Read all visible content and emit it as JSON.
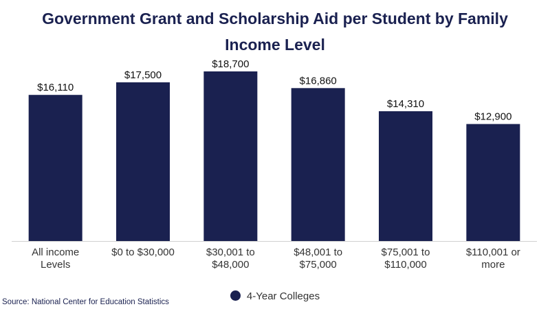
{
  "chart_data": {
    "type": "bar",
    "title_lines": [
      "Government Grant and Scholarship Aid per Student by Family",
      "Income Level"
    ],
    "categories": [
      [
        "All income",
        "Levels"
      ],
      [
        "$0 to $30,000"
      ],
      [
        "$30,001 to",
        "$48,000"
      ],
      [
        "$48,001 to",
        "$75,000"
      ],
      [
        "$75,001 to",
        "$110,000"
      ],
      [
        "$110,001 or",
        "more"
      ]
    ],
    "series": [
      {
        "name": "4-Year Colleges",
        "values": [
          16110,
          17500,
          18700,
          16860,
          14310,
          12900
        ],
        "labels": [
          "$16,110",
          "$17,500",
          "$18,700",
          "$16,860",
          "$14,310",
          "$12,900"
        ]
      }
    ],
    "ylim": [
      0,
      18700
    ],
    "grid": false,
    "legend_position": "bottom",
    "bar_color": "#1a2150"
  },
  "source": "Source: National Center for Education Statistics"
}
